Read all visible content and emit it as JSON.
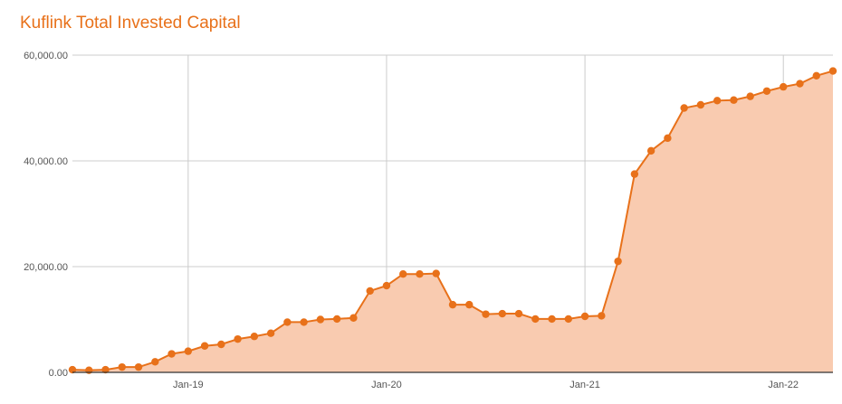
{
  "chart_data": {
    "type": "area",
    "title": "Kuflink Total Invested Capital",
    "xlabel": "",
    "ylabel": "",
    "ylim": [
      0,
      60000
    ],
    "yticks": [
      "0.00",
      "20,000.00",
      "40,000.00",
      "60,000.00"
    ],
    "xticks": [
      "Jan-19",
      "Jan-20",
      "Jan-21",
      "Jan-22"
    ],
    "grid": true,
    "legend": "none",
    "colors": {
      "line": "#e8711a",
      "fill": "#f9cbb0",
      "title": "#e8711a",
      "grid": "#cccccc",
      "axis": "#333333"
    },
    "series": [
      {
        "x": [
          "Jun-18",
          "Jul-18",
          "Aug-18",
          "Sep-18",
          "Oct-18",
          "Nov-18",
          "Dec-18",
          "Jan-19",
          "Feb-19",
          "Mar-19",
          "Apr-19",
          "May-19",
          "Jun-19",
          "Jul-19",
          "Aug-19",
          "Sep-19",
          "Oct-19",
          "Nov-19",
          "Dec-19",
          "Jan-20",
          "Feb-20",
          "Mar-20",
          "Apr-20",
          "May-20",
          "Jun-20",
          "Jul-20",
          "Aug-20",
          "Sep-20",
          "Oct-20",
          "Nov-20",
          "Dec-20",
          "Jan-21",
          "Feb-21",
          "Mar-21",
          "Apr-21",
          "May-21",
          "Jun-21",
          "Jul-21",
          "Aug-21",
          "Sep-21",
          "Oct-21",
          "Nov-21",
          "Dec-21",
          "Jan-22",
          "Feb-22",
          "Mar-22",
          "Apr-22"
        ],
        "values": [
          500,
          400,
          500,
          1000,
          1000,
          2000,
          3500,
          4000,
          5000,
          5300,
          6300,
          6800,
          7400,
          9500,
          9500,
          10000,
          10100,
          10300,
          15400,
          16400,
          18600,
          18600,
          18700,
          12800,
          12800,
          11000,
          11100,
          11100,
          10100,
          10100,
          10100,
          10600,
          10700,
          21000,
          37500,
          41900,
          44300,
          50000,
          50600,
          51400,
          51500,
          52200,
          53200,
          54000,
          54600,
          56100,
          57000
        ]
      }
    ]
  }
}
